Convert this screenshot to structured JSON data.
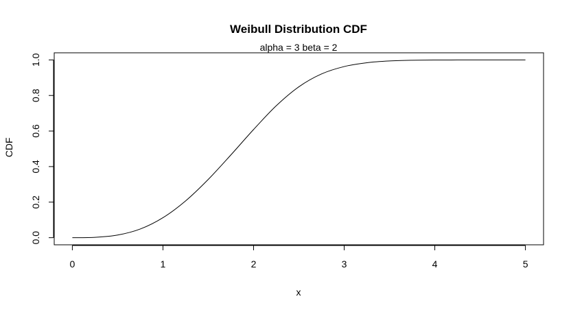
{
  "chart_data": {
    "type": "line",
    "title": "Weibull Distribution CDF",
    "subtitle": "alpha = 3  beta = 2",
    "xlabel": "x",
    "ylabel": "CDF",
    "xlim": [
      -0.2,
      5.2
    ],
    "ylim": [
      -0.04,
      1.04
    ],
    "xticks": [
      0,
      1,
      2,
      3,
      4,
      5
    ],
    "xtick_labels": [
      "0",
      "1",
      "2",
      "3",
      "4",
      "5"
    ],
    "yticks": [
      0.0,
      0.2,
      0.4,
      0.6,
      0.8,
      1.0
    ],
    "ytick_labels": [
      "0.0",
      "0.2",
      "0.4",
      "0.6",
      "0.8",
      "1.0"
    ],
    "grid": false,
    "series": [
      {
        "color": "#000000",
        "x": [
          0.0,
          0.25,
          0.5,
          0.75,
          1.0,
          1.25,
          1.5,
          1.75,
          2.0,
          2.25,
          2.5,
          2.75,
          3.0,
          3.25,
          3.5,
          3.75,
          4.0,
          4.25,
          4.5,
          4.75,
          5.0
        ],
        "y": [
          0.0,
          0.0019,
          0.0148,
          0.0489,
          0.1127,
          0.207,
          0.3279,
          0.4657,
          0.6084,
          0.7419,
          0.8488,
          0.921,
          0.9626,
          0.9842,
          0.994,
          0.998,
          0.9994,
          0.9998,
          1.0,
          1.0,
          1.0
        ]
      }
    ]
  }
}
